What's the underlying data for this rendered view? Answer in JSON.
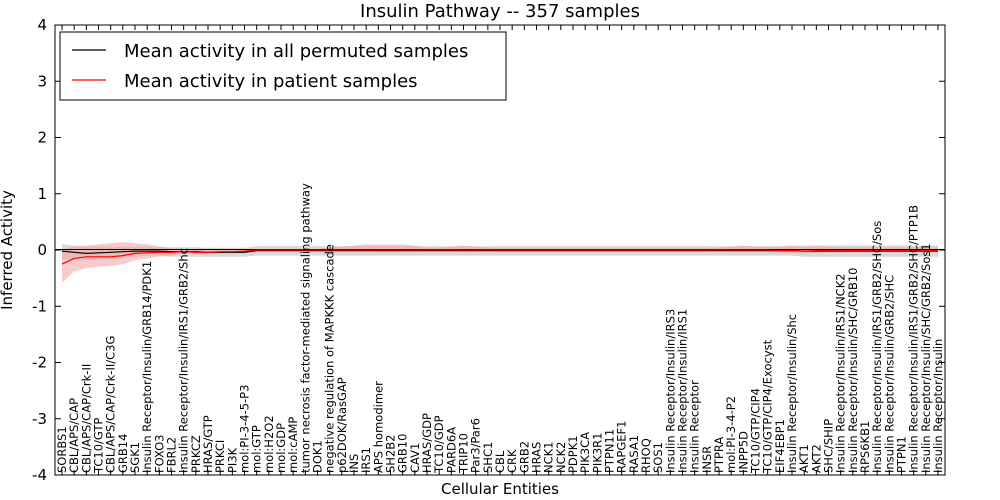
{
  "chart_data": {
    "type": "line",
    "title": "Insulin Pathway -- 357 samples",
    "xlabel": "Cellular Entities",
    "ylabel": "Inferred Activity",
    "ylim": [
      -4,
      4
    ],
    "yticks": [
      "-4",
      "-3",
      "-2",
      "-1",
      "0",
      "1",
      "2",
      "3",
      "4"
    ],
    "grid": false,
    "legend_position": "upper-left",
    "categories": [
      "SORBS1",
      "CBL/APS/CAP",
      "CBL/APS/CAP/Crk-II",
      "TC10/GTP",
      "CBL/APS/CAP/Crk-II/C3G",
      "GRB14",
      "SGK1",
      "Insulin Receptor/Insulin/GRB14/PDK1",
      "FOXO3",
      "FBRL2",
      "Insulin Receptor/Insulin/IRS1/GRB2/Shc",
      "PRKCZ",
      "HRAS/GTP",
      "PRKCI",
      "PI3K",
      "mol:PI-3-4-5-P3",
      "mol:GTP",
      "mol:H2O2",
      "mol:GDP",
      "mol:cAMP",
      "tumor necrosis factor-mediated signaling pathway",
      "DOK1",
      "negative regulation of MAPKKK cascade",
      "p62DOK/RasGAP",
      "INS",
      "IRS1",
      "APS homodimer",
      "SH2B2",
      "GRB10",
      "CAV1",
      "HRAS/GDP",
      "TC10/GDP",
      "PARD6A",
      "TRIP10",
      "Par3/Par6",
      "SHC1",
      "CBL",
      "CRK",
      "GRB2",
      "HRAS",
      "NCK1",
      "NCK2",
      "PDPK1",
      "PIK3CA",
      "PIK3R1",
      "PTPN11",
      "RAPGEF1",
      "RASA1",
      "RHOQ",
      "SOS1",
      "Insulin Receptor/Insulin/IRS3",
      "Insulin Receptor/Insulin/IRS1",
      "Insulin Receptor",
      "INSR",
      "PTPRA",
      "mol:PI-3-4-P2",
      "INPP5D",
      "TC10/GTP/CIP4",
      "TC10/GTP/CIP4/Exocyst",
      "EIF4EBP1",
      "Insulin Receptor/Insulin/Shc",
      "AKT1",
      "AKT2",
      "SHC/SHIP",
      "Insulin Receptor/Insulin/IRS1/NCK2",
      "Insulin Receptor/Insulin/SHC/GRB10",
      "RPS6KB1",
      "Insulin Receptor/Insulin/IRS1/GRB2/SHC/Sos",
      "Insulin Receptor/Insulin/GRB2/SHC",
      "PTPN1",
      "Insulin Receptor/Insulin/IRS1/GRB2/SHC/PTP1B",
      "Insulin Receptor/Insulin/SHC/GRB2/Sos1",
      "Insulin Receptor/Insulin"
    ],
    "series": [
      {
        "name": "Mean activity in all permuted samples",
        "color": "#000000",
        "band_color": "#bfbfbf",
        "values": [
          -0.02,
          -0.04,
          -0.06,
          -0.05,
          -0.04,
          -0.03,
          -0.02,
          -0.02,
          -0.02,
          -0.03,
          -0.03,
          -0.03,
          -0.04,
          -0.04,
          -0.04,
          -0.04,
          -0.01,
          -0.01,
          -0.01,
          -0.01,
          -0.01,
          -0.01,
          -0.01,
          -0.01,
          -0.01,
          -0.01,
          -0.01,
          -0.01,
          -0.01,
          -0.01,
          -0.01,
          -0.01,
          -0.01,
          -0.01,
          -0.01,
          -0.01,
          -0.01,
          -0.01,
          -0.01,
          -0.01,
          -0.01,
          -0.01,
          -0.01,
          -0.01,
          -0.01,
          -0.01,
          -0.01,
          -0.01,
          -0.01,
          -0.01,
          -0.01,
          -0.01,
          -0.01,
          -0.01,
          -0.01,
          -0.01,
          -0.01,
          -0.01,
          -0.01,
          -0.01,
          -0.01,
          -0.02,
          -0.02,
          -0.02,
          -0.02,
          -0.02,
          -0.02,
          -0.02,
          -0.02,
          -0.02,
          -0.02,
          -0.02,
          -0.02
        ],
        "lower": [
          -0.18,
          -0.16,
          -0.18,
          -0.17,
          -0.16,
          -0.14,
          -0.12,
          -0.1,
          -0.1,
          -0.12,
          -0.12,
          -0.12,
          -0.12,
          -0.12,
          -0.12,
          -0.12,
          -0.1,
          -0.1,
          -0.1,
          -0.1,
          -0.1,
          -0.1,
          -0.1,
          -0.1,
          -0.1,
          -0.1,
          -0.1,
          -0.1,
          -0.1,
          -0.1,
          -0.1,
          -0.1,
          -0.1,
          -0.1,
          -0.1,
          -0.1,
          -0.1,
          -0.1,
          -0.1,
          -0.1,
          -0.1,
          -0.1,
          -0.1,
          -0.1,
          -0.1,
          -0.1,
          -0.1,
          -0.1,
          -0.1,
          -0.1,
          -0.1,
          -0.1,
          -0.1,
          -0.1,
          -0.1,
          -0.1,
          -0.1,
          -0.1,
          -0.1,
          -0.1,
          -0.1,
          -0.12,
          -0.12,
          -0.12,
          -0.12,
          -0.12,
          -0.12,
          -0.12,
          -0.12,
          -0.12,
          -0.12,
          -0.12,
          -0.12
        ],
        "upper": [
          0.1,
          0.08,
          0.06,
          0.06,
          0.06,
          0.06,
          0.06,
          0.06,
          0.06,
          0.05,
          0.05,
          0.05,
          0.04,
          0.04,
          0.04,
          0.04,
          0.07,
          0.07,
          0.07,
          0.07,
          0.07,
          0.07,
          0.07,
          0.07,
          0.07,
          0.07,
          0.07,
          0.07,
          0.07,
          0.07,
          0.07,
          0.07,
          0.07,
          0.07,
          0.07,
          0.07,
          0.07,
          0.07,
          0.07,
          0.07,
          0.07,
          0.07,
          0.07,
          0.07,
          0.07,
          0.07,
          0.07,
          0.07,
          0.07,
          0.07,
          0.07,
          0.07,
          0.07,
          0.07,
          0.07,
          0.07,
          0.07,
          0.07,
          0.07,
          0.07,
          0.07,
          0.08,
          0.08,
          0.08,
          0.08,
          0.08,
          0.08,
          0.08,
          0.08,
          0.08,
          0.08,
          0.08,
          0.08
        ]
      },
      {
        "name": "Mean activity in patient samples",
        "color": "#ff0000",
        "band_color": "#f4a0a0",
        "values": [
          -0.25,
          -0.15,
          -0.12,
          -0.12,
          -0.12,
          -0.1,
          -0.06,
          -0.05,
          -0.04,
          -0.04,
          -0.03,
          -0.04,
          -0.04,
          -0.03,
          -0.03,
          -0.02,
          0.0,
          0.0,
          0.0,
          0.0,
          0.0,
          0.0,
          0.0,
          0.0,
          0.0,
          0.0,
          0.0,
          0.0,
          0.0,
          0.0,
          0.0,
          0.0,
          0.0,
          0.0,
          0.0,
          0.0,
          0.0,
          0.0,
          0.0,
          0.0,
          0.0,
          0.0,
          0.0,
          0.0,
          0.0,
          0.0,
          0.0,
          0.0,
          0.0,
          0.0,
          0.0,
          0.0,
          0.0,
          0.0,
          0.0,
          0.0,
          0.0,
          0.0,
          0.0,
          -0.01,
          -0.01,
          -0.02,
          -0.01,
          -0.01,
          -0.01,
          -0.01,
          -0.01,
          -0.01,
          -0.01,
          -0.01,
          -0.01,
          -0.01,
          -0.01
        ],
        "lower": [
          -0.58,
          -0.38,
          -0.32,
          -0.3,
          -0.28,
          -0.25,
          -0.18,
          -0.15,
          -0.12,
          -0.1,
          -0.07,
          -0.07,
          -0.08,
          -0.07,
          -0.06,
          -0.05,
          -0.02,
          -0.02,
          -0.02,
          -0.02,
          -0.02,
          -0.02,
          -0.03,
          -0.03,
          -0.03,
          -0.03,
          -0.03,
          -0.04,
          -0.03,
          -0.03,
          -0.02,
          -0.02,
          -0.02,
          -0.03,
          -0.03,
          -0.02,
          -0.02,
          -0.02,
          -0.02,
          -0.02,
          -0.02,
          -0.02,
          -0.02,
          -0.02,
          -0.02,
          -0.02,
          -0.02,
          -0.02,
          -0.02,
          -0.02,
          -0.02,
          -0.02,
          -0.02,
          -0.02,
          -0.02,
          -0.03,
          -0.03,
          -0.03,
          -0.03,
          -0.04,
          -0.05,
          -0.06,
          -0.04,
          -0.03,
          -0.03,
          -0.03,
          -0.03,
          -0.03,
          -0.03,
          -0.03,
          -0.03,
          -0.03,
          -0.03
        ],
        "upper": [
          0.0,
          0.06,
          0.08,
          0.1,
          0.12,
          0.14,
          0.12,
          0.1,
          0.06,
          0.03,
          0.02,
          0.02,
          0.02,
          0.02,
          0.02,
          0.02,
          0.02,
          0.02,
          0.02,
          0.02,
          0.02,
          0.02,
          0.04,
          0.06,
          0.08,
          0.1,
          0.1,
          0.1,
          0.1,
          0.08,
          0.04,
          0.04,
          0.06,
          0.08,
          0.06,
          0.04,
          0.03,
          0.03,
          0.03,
          0.03,
          0.03,
          0.03,
          0.03,
          0.03,
          0.03,
          0.03,
          0.03,
          0.03,
          0.03,
          0.03,
          0.03,
          0.03,
          0.03,
          0.03,
          0.04,
          0.06,
          0.08,
          0.06,
          0.06,
          0.06,
          0.08,
          0.05,
          0.07,
          0.06,
          0.05,
          0.05,
          0.05,
          0.05,
          0.05,
          0.05,
          0.05,
          0.05,
          0.05
        ]
      }
    ]
  }
}
